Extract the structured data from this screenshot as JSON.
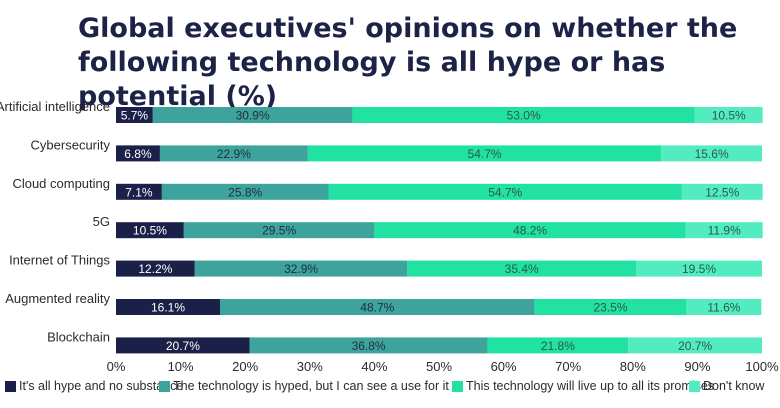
{
  "title": "Global executives' opinions on whether the following technology is all hype or has potential (%)",
  "chart_data": {
    "type": "bar",
    "orientation": "horizontal",
    "stacked": true,
    "categories": [
      "Artificial intelligence",
      "Cybersecurity",
      "Cloud computing",
      "5G",
      "Internet of Things",
      "Augmented reality",
      "Blockchain"
    ],
    "series": [
      {
        "name": "It's all hype and no substance",
        "color": "#1b2048",
        "label_color": "#ffffff",
        "values": [
          5.7,
          6.8,
          7.1,
          10.5,
          12.2,
          16.1,
          20.7
        ]
      },
      {
        "name": "The technology is hyped, but I can see a use for it",
        "color": "#3da39c",
        "label_color": "#1f2f3a",
        "values": [
          30.9,
          22.9,
          25.8,
          29.5,
          32.9,
          48.7,
          36.8
        ]
      },
      {
        "name": "This technology will live up to all its promises",
        "color": "#21e2a2",
        "label_color": "#2a5a4a",
        "values": [
          53.0,
          54.7,
          54.7,
          48.2,
          35.4,
          23.5,
          21.8
        ]
      },
      {
        "name": "Don't know",
        "color": "#52ecc0",
        "label_color": "#2a5a4a",
        "values": [
          10.5,
          15.6,
          12.5,
          11.9,
          19.5,
          11.6,
          20.7
        ]
      }
    ],
    "value_labels": [
      [
        "5.7%",
        "6.8%",
        "7.1%",
        "10.5%",
        "12.2%",
        "16.1%",
        "20.7%"
      ],
      [
        "30.9%",
        "22.9%",
        "25.8%",
        "29.5%",
        "32.9%",
        "48.7%",
        "36.8%"
      ],
      [
        "53.0%",
        "54.7%",
        "54.7%",
        "48.2%",
        "35.4%",
        "23.5%",
        "21.8%"
      ],
      [
        "10.5%",
        "15.6%",
        "12.5%",
        "11.9%",
        "19.5%",
        "11.6%",
        "20.7%"
      ]
    ],
    "xlim": [
      0,
      100
    ],
    "x_ticks": [
      "0%",
      "10%",
      "20%",
      "30%",
      "40%",
      "50%",
      "60%",
      "70%",
      "80%",
      "90%",
      "100%"
    ],
    "legend_position": "bottom",
    "grid": false
  }
}
